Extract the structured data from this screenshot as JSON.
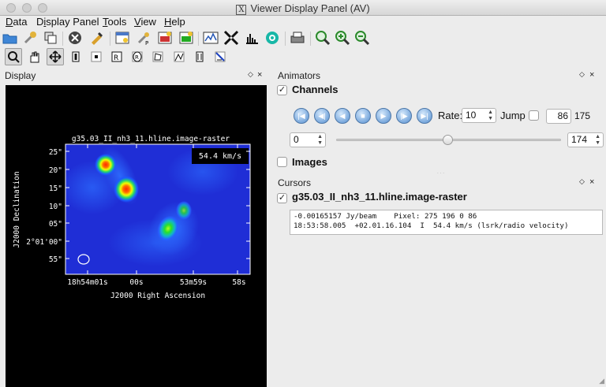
{
  "window": {
    "title": "Viewer Display Panel (AV)",
    "title_icon": "X"
  },
  "menubar": [
    {
      "label": "Data",
      "mnemonic": "D",
      "rest": "ata"
    },
    {
      "label": "Display Panel",
      "mnemonic": "i",
      "pre": "D",
      "rest": "splay Panel"
    },
    {
      "label": "Tools",
      "mnemonic": "T",
      "rest": "ools"
    },
    {
      "label": "View",
      "mnemonic": "V",
      "rest": "iew"
    },
    {
      "label": "Help",
      "mnemonic": "H",
      "rest": "elp"
    }
  ],
  "toolbar_main": [
    "open-folder-icon",
    "wrench-icon",
    "copy-panel-icon",
    "close-data-icon",
    "unload-icon",
    "new-panel-icon",
    "panel-options-icon",
    "save-image-icon",
    "print-image-icon",
    "spectral-profile-icon",
    "fit-icon",
    "histogram-icon",
    "colormap-icon",
    "printer-icon",
    "zoom-fit-icon",
    "zoom-in-icon",
    "zoom-out-icon"
  ],
  "toolbar_mouse": [
    "zoom-tool-icon",
    "pan-tool-icon",
    "move-tool-icon",
    "contrast-tool-icon",
    "point-tool-icon",
    "rectangle-region-icon",
    "ellipse-region-icon",
    "polygon-region-icon",
    "polyline-icon",
    "position-velocity-icon",
    "crosshair-icon"
  ],
  "display_panel": {
    "header": "Display",
    "image_title": "g35.03_II_nh3_11.hline.image-raster",
    "velocity_label": "54.4 km/s",
    "x_axis_label": "J2000 Right Ascension",
    "y_axis_label": "J2000 Declination",
    "x_ticks": [
      "18h54m01s",
      "00s",
      "53m59s",
      "58s"
    ],
    "y_ticks": [
      "25\"",
      "20\"",
      "15\"",
      "10\"",
      "05\"",
      "2°01'00\"",
      "55\""
    ]
  },
  "animators": {
    "header": "Animators",
    "channels_label": "Channels",
    "channels_checked": true,
    "controls": [
      "to-start-icon",
      "step-back-icon",
      "play-reverse-icon",
      "stop-icon",
      "play-forward-icon",
      "step-forward-icon",
      "to-end-icon"
    ],
    "rate_label": "Rate:",
    "rate_value": "10",
    "jump_label": "Jump",
    "jump_value": "86",
    "total_channels": "175",
    "min_value": "0",
    "max_value": "174",
    "slider_position": 0.494,
    "images_label": "Images",
    "images_checked": false
  },
  "cursors": {
    "header": "Cursors",
    "layer_label": "g35.03_II_nh3_11.hline.image-raster",
    "layer_checked": true,
    "line1": "-0.00165157 Jy/beam    Pixel: 275 196 0 86",
    "line2": "18:53:58.005  +02.01.16.104  I  54.4 km/s (lsrk/radio velocity)"
  },
  "colors": {
    "window_bg": "#ececec",
    "display_bg": "#000000",
    "button_blue": "#6f9fd6"
  }
}
